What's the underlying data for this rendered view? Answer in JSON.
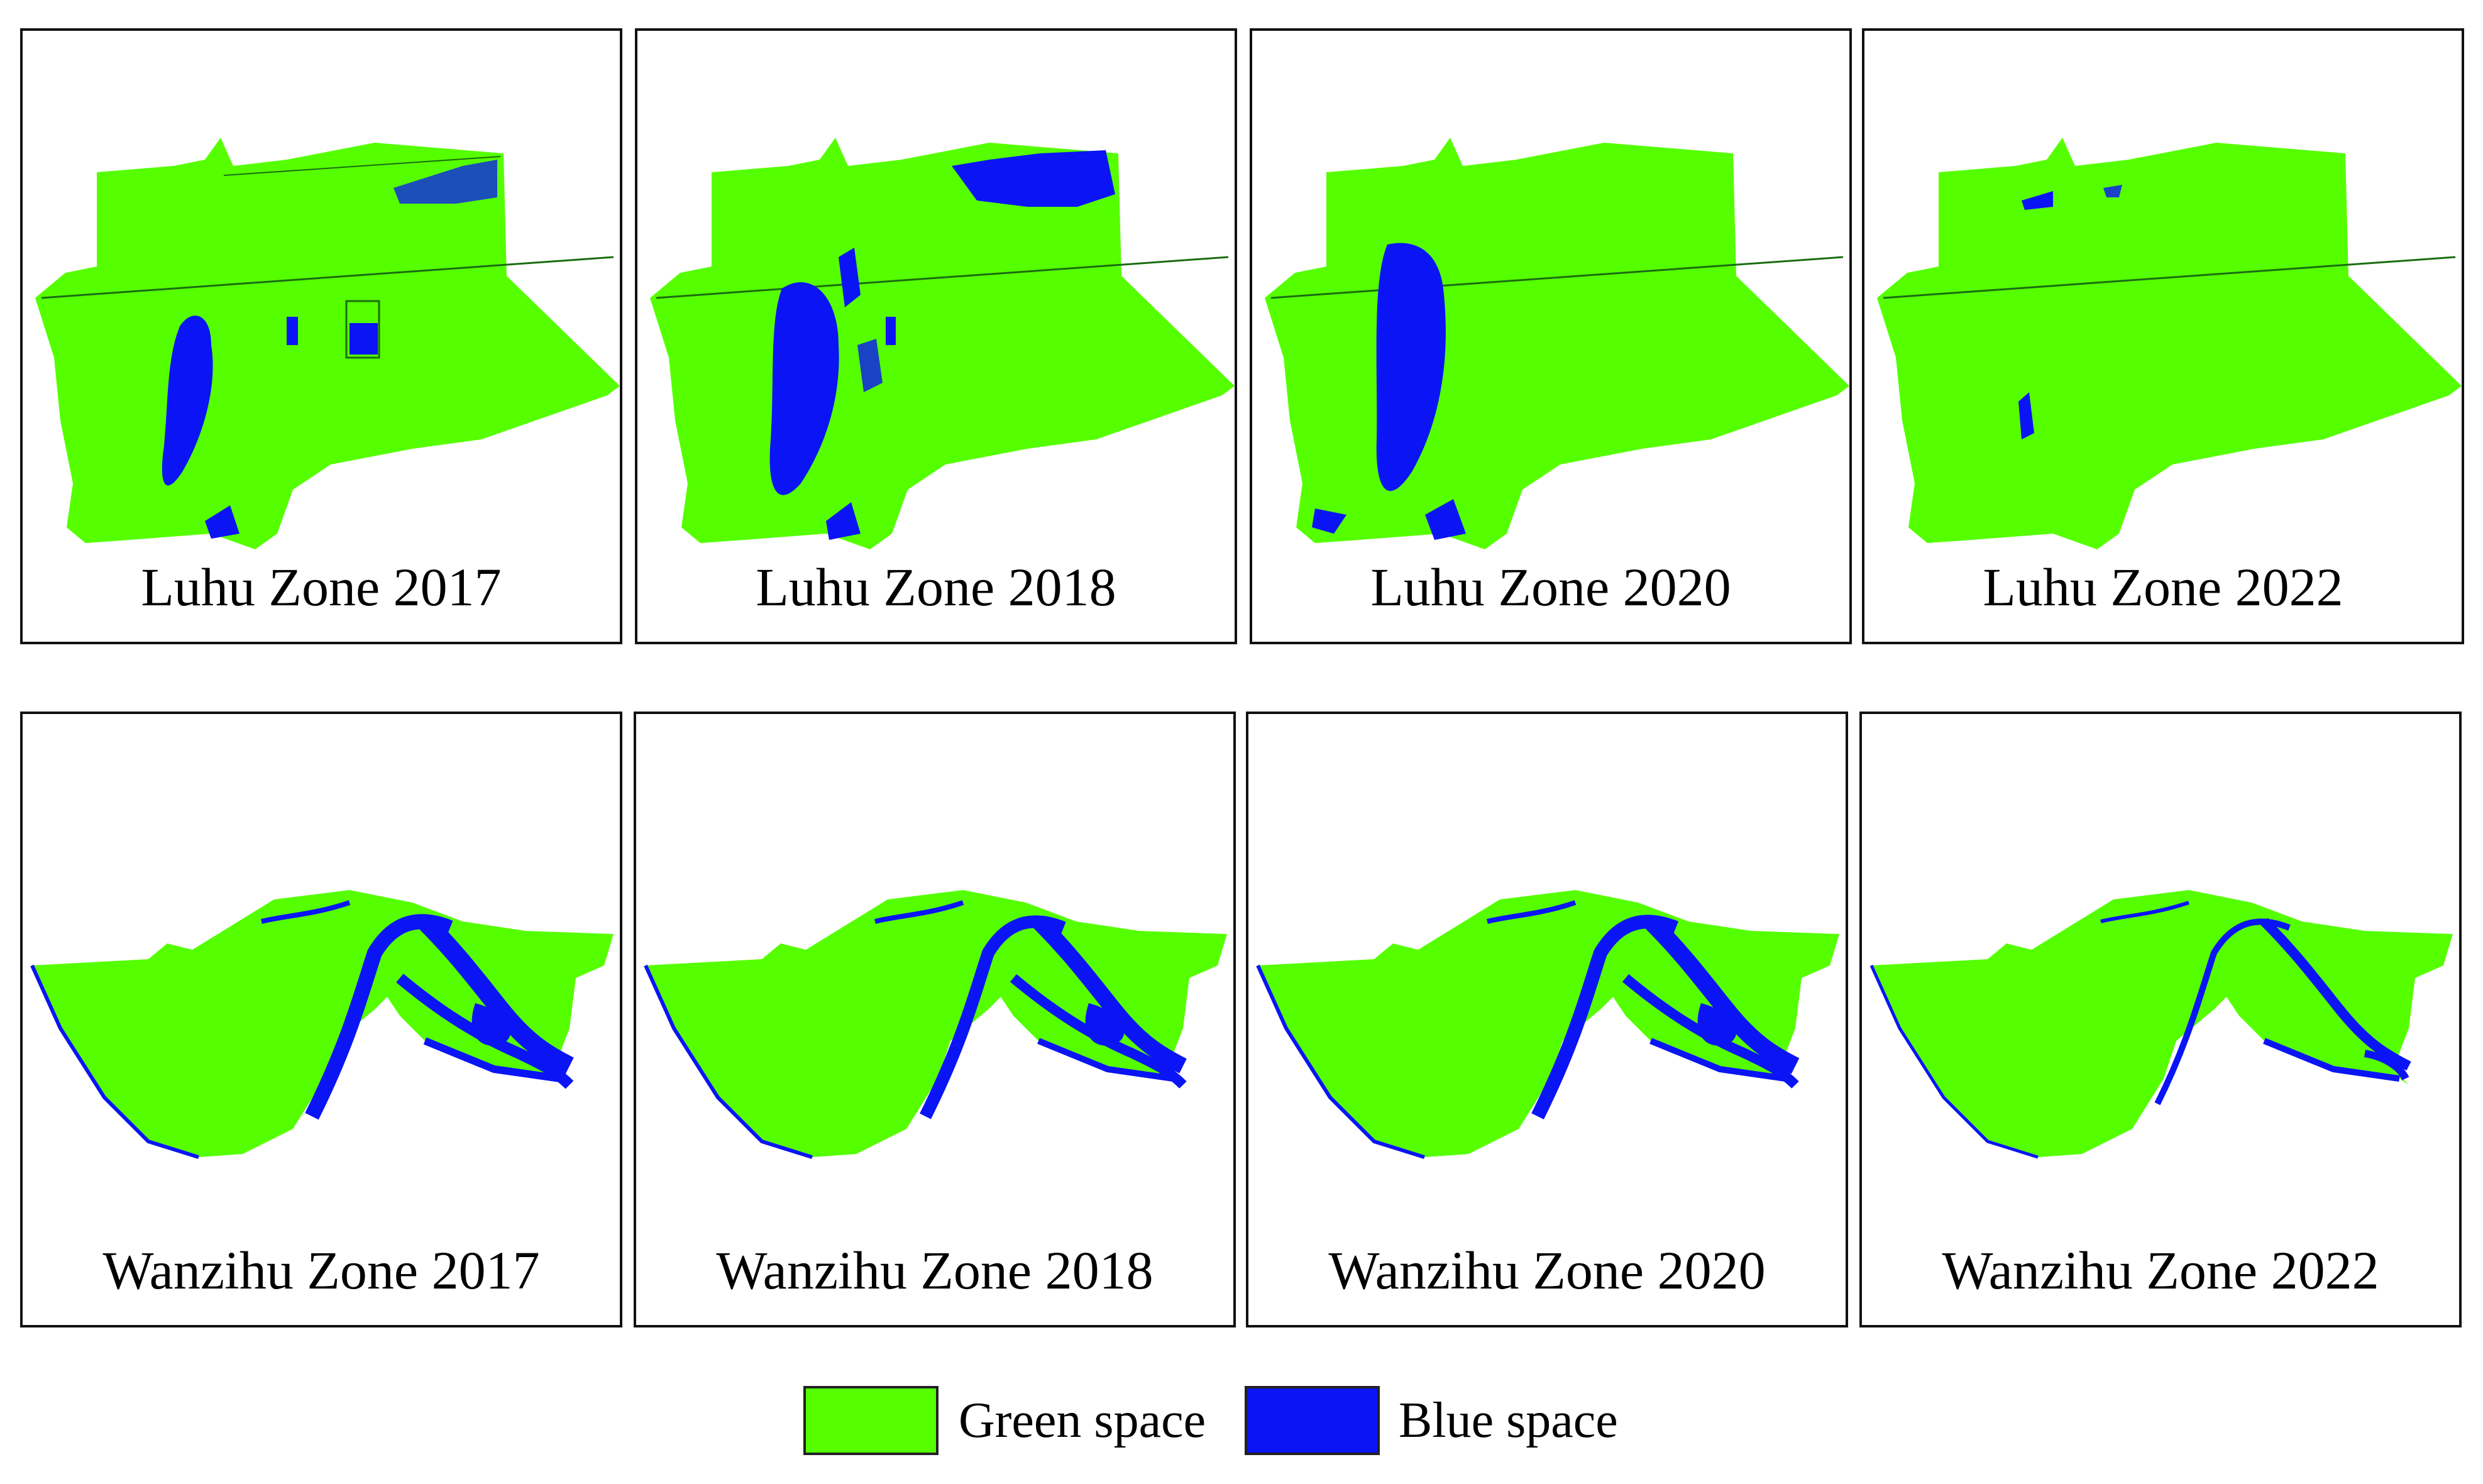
{
  "colors": {
    "green_space": "#55ff00",
    "blue_space": "#0a14f5",
    "border": "#111111"
  },
  "luhu_panels": [
    {
      "caption": "Luhu Zone 2017",
      "blue_level": "medium"
    },
    {
      "caption": "Luhu Zone 2018",
      "blue_level": "high"
    },
    {
      "caption": "Luhu Zone 2020",
      "blue_level": "concentrated"
    },
    {
      "caption": "Luhu Zone 2022",
      "blue_level": "low"
    }
  ],
  "wanzihu_panels": [
    {
      "caption": "Wanzihu Zone 2017",
      "blue_level": "high"
    },
    {
      "caption": "Wanzihu Zone 2018",
      "blue_level": "high"
    },
    {
      "caption": "Wanzihu Zone 2020",
      "blue_level": "high"
    },
    {
      "caption": "Wanzihu Zone 2022",
      "blue_level": "low"
    }
  ],
  "legend": {
    "green_label": "Green space",
    "blue_label": "Blue space"
  }
}
